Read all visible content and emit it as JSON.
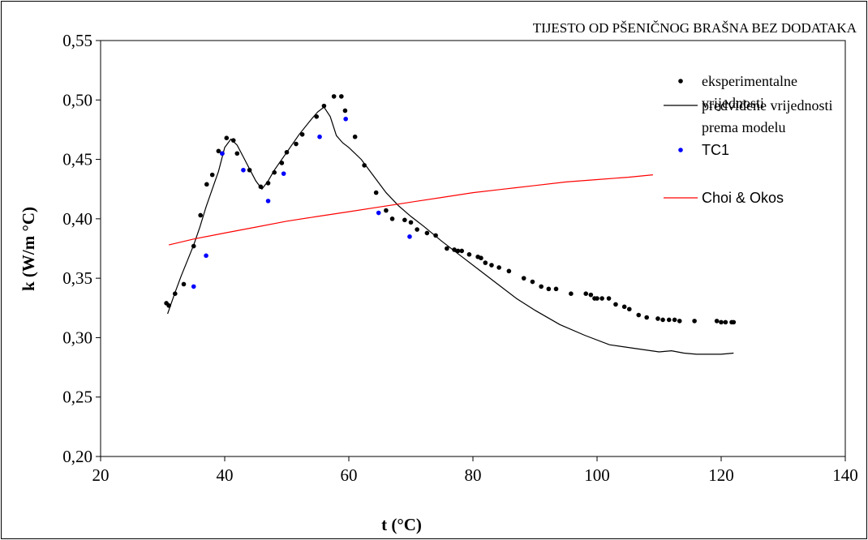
{
  "chart_data": {
    "type": "scatter",
    "title": "TIJESTO OD PŠENIČNOG BRAŠNA BEZ DODATAKA",
    "xlabel": "t (°C)",
    "ylabel": "k (W/m °C)",
    "xlim": [
      20,
      140
    ],
    "ylim": [
      0.2,
      0.55
    ],
    "xticks": [
      20,
      40,
      60,
      80,
      100,
      120,
      140
    ],
    "xtick_labels": [
      "20",
      "40",
      "60",
      "80",
      "100",
      "120",
      "140"
    ],
    "yticks": [
      0.2,
      0.25,
      0.3,
      0.35,
      0.4,
      0.45,
      0.5,
      0.55
    ],
    "ytick_labels": [
      "0,20",
      "0,25",
      "0,30",
      "0,35",
      "0,40",
      "0,45",
      "0,50",
      "0,55"
    ],
    "grid": false,
    "legend_position": "top-right",
    "series": [
      {
        "name": "eksperimentalne vrijednosti",
        "legend_lines": [
          "eksperimentalne",
          "vrijednosti"
        ],
        "kind": "points",
        "color": "#000000",
        "x": [
          30.6,
          31.0,
          32.0,
          33.4,
          35.0,
          36.1,
          37.1,
          38.0,
          39.0,
          39.6,
          40.3,
          41.4,
          42.0,
          44.0,
          45.8,
          47.0,
          48.0,
          49.2,
          50.0,
          51.5,
          52.5,
          54.8,
          56.0,
          57.6,
          58.8,
          59.4,
          61.0,
          62.5,
          64.4,
          66.0,
          67.0,
          69.0,
          70.0,
          71.0,
          72.6,
          74.0,
          75.8,
          77.0,
          77.6,
          78.2,
          79.4,
          80.8,
          81.3,
          82.0,
          83.0,
          84.2,
          85.8,
          88.2,
          89.6,
          91.0,
          92.2,
          93.4,
          95.8,
          98.2,
          99.0,
          99.6,
          100.0,
          100.8,
          101.9,
          103.0,
          104.4,
          105.2,
          106.7,
          108.0,
          109.8,
          110.6,
          111.6,
          112.5,
          113.3,
          115.7,
          119.3,
          120.0,
          120.7,
          121.7,
          122.0
        ],
        "y": [
          0.329,
          0.327,
          0.337,
          0.345,
          0.377,
          0.403,
          0.429,
          0.437,
          0.457,
          0.455,
          0.468,
          0.466,
          0.455,
          0.441,
          0.427,
          0.43,
          0.439,
          0.447,
          0.456,
          0.463,
          0.471,
          0.486,
          0.495,
          0.503,
          0.503,
          0.491,
          0.469,
          0.445,
          0.422,
          0.407,
          0.4,
          0.399,
          0.397,
          0.391,
          0.388,
          0.386,
          0.375,
          0.374,
          0.373,
          0.373,
          0.37,
          0.368,
          0.367,
          0.363,
          0.361,
          0.359,
          0.356,
          0.35,
          0.347,
          0.343,
          0.341,
          0.341,
          0.337,
          0.337,
          0.336,
          0.333,
          0.333,
          0.333,
          0.333,
          0.328,
          0.326,
          0.324,
          0.319,
          0.317,
          0.316,
          0.315,
          0.315,
          0.315,
          0.314,
          0.314,
          0.314,
          0.313,
          0.313,
          0.313,
          0.313
        ]
      },
      {
        "name": "predviđene vrijednosti prema modelu",
        "legend_lines": [
          "predviđene vrijednosti",
          "prema modelu"
        ],
        "kind": "line",
        "color": "#000000",
        "x": [
          30.8,
          32,
          33,
          34,
          35,
          36,
          37,
          38,
          39,
          40,
          41,
          42,
          43,
          44,
          45,
          46,
          47,
          48,
          50,
          52,
          54,
          55,
          56,
          57,
          58,
          59,
          60,
          62,
          64,
          66,
          68,
          70,
          72,
          75,
          78,
          81,
          84,
          87,
          90,
          94,
          98,
          102,
          106,
          110,
          112,
          114,
          116,
          118,
          120,
          122
        ],
        "y": [
          0.32,
          0.338,
          0.352,
          0.365,
          0.378,
          0.393,
          0.41,
          0.425,
          0.44,
          0.46,
          0.467,
          0.462,
          0.452,
          0.442,
          0.432,
          0.425,
          0.432,
          0.441,
          0.456,
          0.471,
          0.484,
          0.49,
          0.494,
          0.486,
          0.47,
          0.464,
          0.46,
          0.45,
          0.436,
          0.422,
          0.411,
          0.402,
          0.394,
          0.381,
          0.369,
          0.357,
          0.345,
          0.333,
          0.323,
          0.311,
          0.302,
          0.294,
          0.291,
          0.288,
          0.289,
          0.287,
          0.286,
          0.286,
          0.286,
          0.287
        ]
      },
      {
        "name": "TC1",
        "legend_lines": [
          "TC1"
        ],
        "kind": "points",
        "color": "#0000ff",
        "x": [
          35.0,
          37.0,
          39.6,
          43.0,
          47.0,
          49.5,
          55.3,
          59.5,
          64.8,
          69.8
        ],
        "y": [
          0.343,
          0.369,
          0.455,
          0.441,
          0.415,
          0.438,
          0.469,
          0.484,
          0.405,
          0.385
        ]
      },
      {
        "name": "Choi & Okos",
        "legend_lines": [
          "Choi & Okos"
        ],
        "kind": "line",
        "color": "#ff0000",
        "x": [
          31,
          35,
          40,
          45,
          50,
          55,
          60,
          65,
          70,
          75,
          80,
          85,
          90,
          95,
          100,
          105,
          109
        ],
        "y": [
          0.378,
          0.383,
          0.388,
          0.393,
          0.398,
          0.402,
          0.406,
          0.41,
          0.414,
          0.418,
          0.422,
          0.425,
          0.428,
          0.431,
          0.433,
          0.435,
          0.437
        ]
      }
    ]
  }
}
